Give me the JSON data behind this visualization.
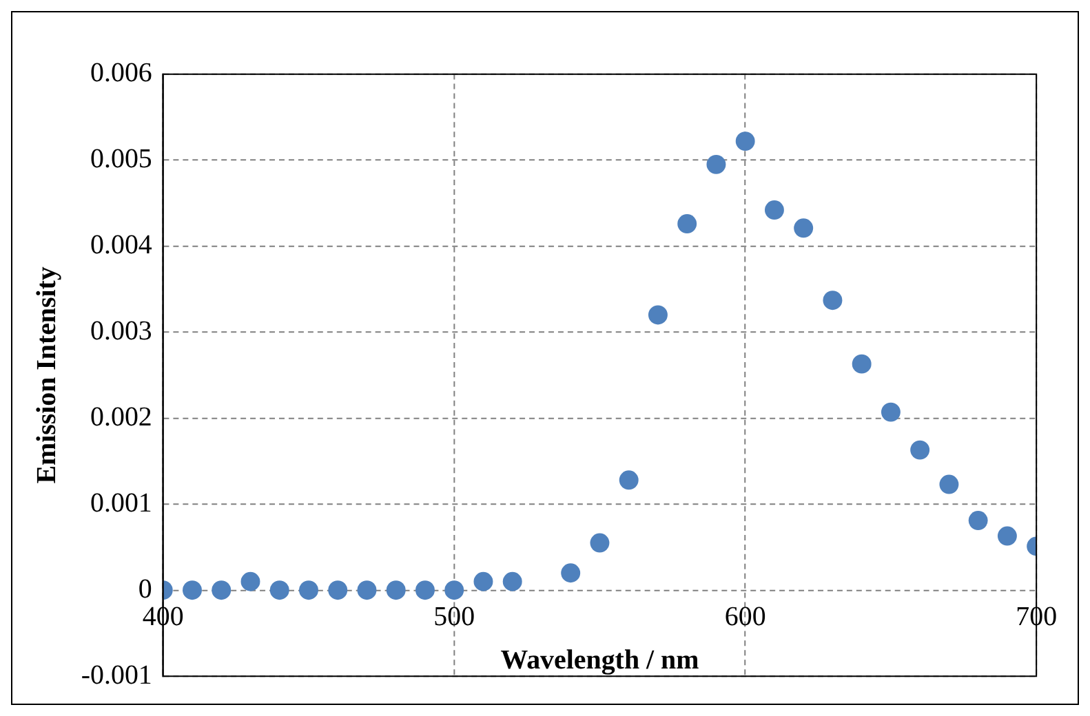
{
  "chart_data": {
    "type": "scatter",
    "xlabel": "Wavelength / nm",
    "ylabel": "Emission Intensity",
    "x": [
      400,
      410,
      420,
      430,
      440,
      450,
      460,
      470,
      480,
      490,
      500,
      510,
      520,
      540,
      550,
      560,
      570,
      580,
      590,
      600,
      610,
      620,
      630,
      640,
      650,
      660,
      670,
      680,
      690,
      700
    ],
    "series": [
      {
        "color": "#4f81bd",
        "values": [
          0,
          0,
          0,
          0.0001,
          0,
          0,
          0,
          0,
          0,
          0,
          0,
          0.0001,
          0.0001,
          0.0002,
          0.00055,
          0.00128,
          0.0032,
          0.00426,
          0.00495,
          0.00522,
          0.00442,
          0.00421,
          0.00337,
          0.00263,
          0.00207,
          0.00163,
          0.00123,
          0.00081,
          0.00063,
          0.00051
        ]
      }
    ],
    "xlim": [
      400,
      700
    ],
    "xticks": [
      400,
      500,
      600,
      700
    ],
    "ylim": [
      -0.001,
      0.006
    ],
    "yticks": [
      {
        "value": -0.001,
        "label": "-0.001"
      },
      0,
      0.001,
      0.002,
      0.003,
      0.004,
      0.005,
      0.006
    ],
    "grid": true,
    "legend": false,
    "marker": "circle"
  }
}
